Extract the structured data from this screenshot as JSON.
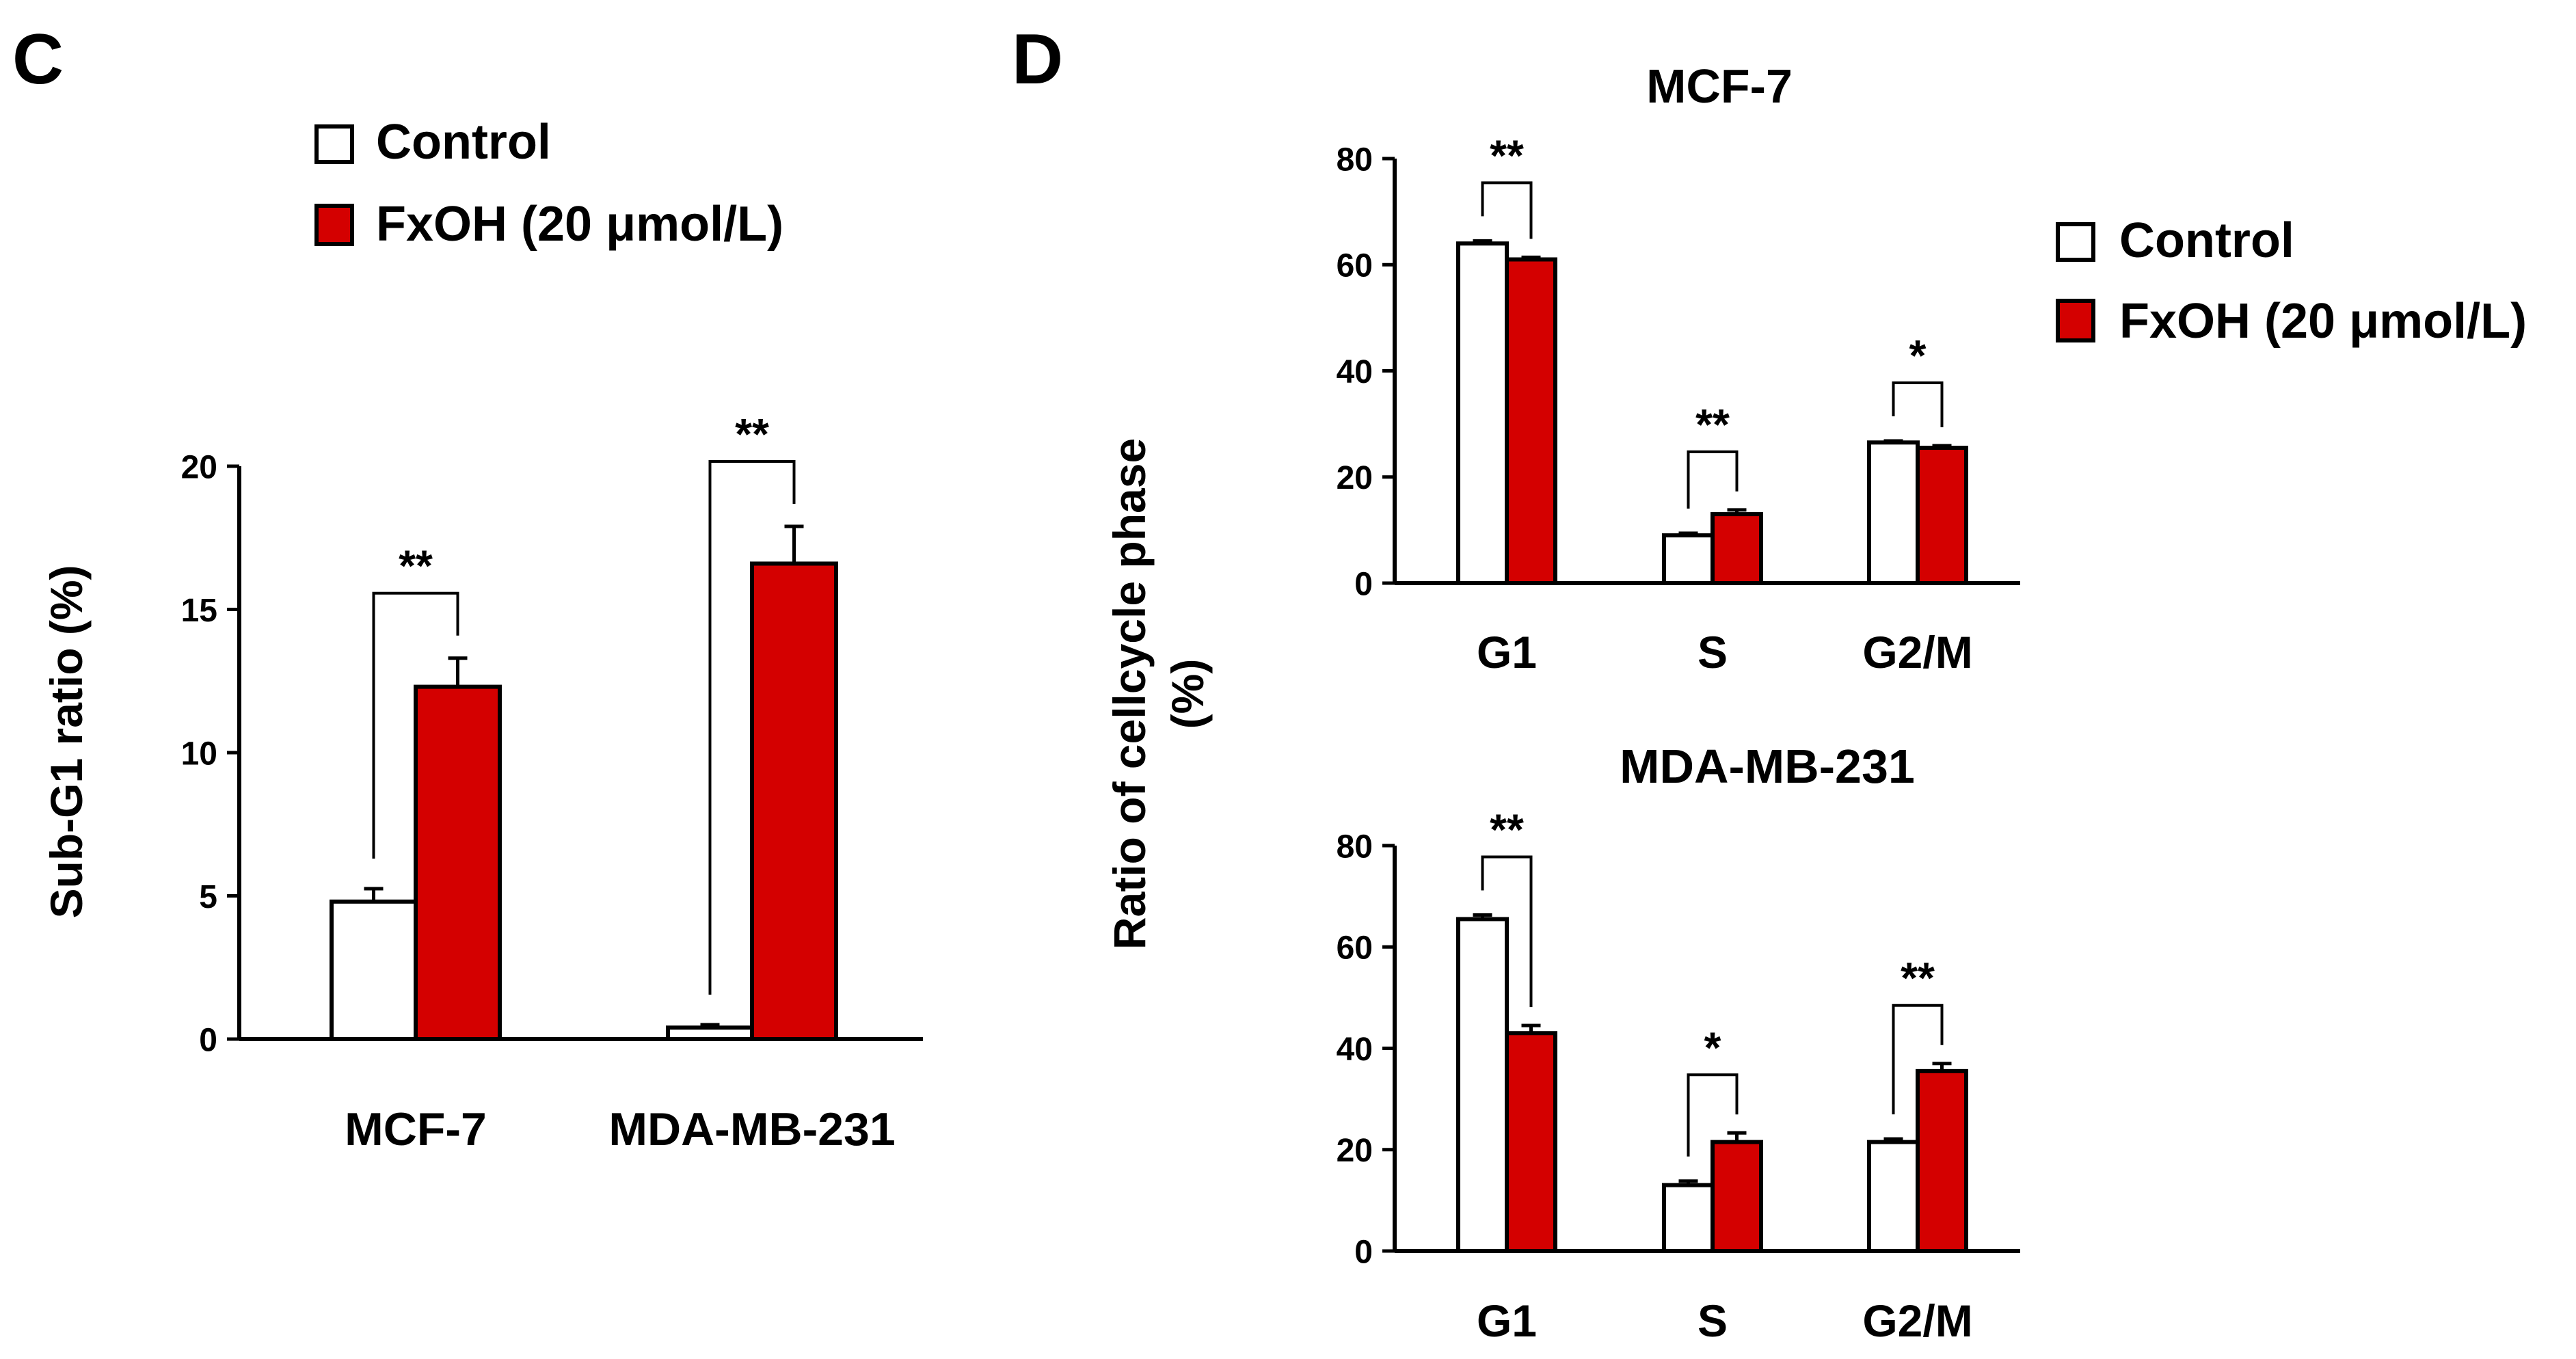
{
  "figure": {
    "panel_c_letter": "C",
    "panel_d_letter": "D",
    "legend_control": "Control",
    "legend_treated": "FxOH (20 μmol/L)",
    "colors": {
      "control": "#ffffff",
      "treated": "#d40000",
      "stroke": "#000000"
    }
  },
  "chart_data": [
    {
      "id": "panel-c",
      "type": "bar",
      "title": "",
      "ylabel": "Sub-G1 ratio (%)",
      "xlabel": "",
      "ylim": [
        0,
        20
      ],
      "yticks": [
        0,
        5,
        10,
        15,
        20
      ],
      "categories": [
        "MCF-7",
        "MDA-MB-231"
      ],
      "series": [
        {
          "name": "Control",
          "values": [
            4.8,
            0.4
          ],
          "errors": [
            0.45,
            0.1
          ]
        },
        {
          "name": "FxOH (20 μmol/L)",
          "values": [
            12.3,
            16.6
          ],
          "errors": [
            1.0,
            1.3
          ]
        }
      ],
      "significance": [
        "**",
        "**"
      ]
    },
    {
      "id": "panel-d-mcf7",
      "type": "bar",
      "title": "MCF-7",
      "ylabel": "Ratio of cellcycle phase (%)",
      "xlabel": "",
      "ylim": [
        0,
        80
      ],
      "yticks": [
        0,
        20,
        40,
        60,
        80
      ],
      "categories": [
        "G1",
        "S",
        "G2/M"
      ],
      "series": [
        {
          "name": "Control",
          "values": [
            64,
            9,
            26.5
          ],
          "errors": [
            0.5,
            0.4,
            0.3
          ]
        },
        {
          "name": "FxOH (20 μmol/L)",
          "values": [
            61,
            13,
            25.5
          ],
          "errors": [
            0.4,
            0.8,
            0.4
          ]
        }
      ],
      "significance": [
        "**",
        "**",
        "*"
      ]
    },
    {
      "id": "panel-d-mda",
      "type": "bar",
      "title": "MDA-MB-231",
      "ylabel": "Ratio of cellcycle phase (%)",
      "xlabel": "",
      "ylim": [
        0,
        80
      ],
      "yticks": [
        0,
        20,
        40,
        60,
        80
      ],
      "categories": [
        "G1",
        "S",
        "G2/M"
      ],
      "series": [
        {
          "name": "Control",
          "values": [
            65.5,
            13,
            21.5
          ],
          "errors": [
            0.8,
            0.8,
            0.6
          ]
        },
        {
          "name": "FxOH (20 μmol/L)",
          "values": [
            43,
            21.5,
            35.5
          ],
          "errors": [
            1.5,
            1.8,
            1.5
          ]
        }
      ],
      "significance": [
        "**",
        "*",
        "**"
      ]
    }
  ]
}
